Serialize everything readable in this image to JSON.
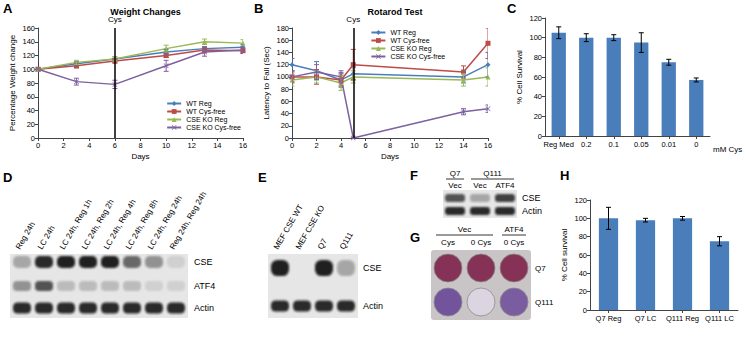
{
  "chart_data": [
    {
      "panel": "A",
      "type": "line",
      "title": "Weight Changes",
      "x_label": "Days",
      "y_label": "Percentage Weight change",
      "x": [
        0,
        3,
        6,
        10,
        13,
        16
      ],
      "xlim": [
        0,
        16
      ],
      "xticks": [
        0,
        2,
        4,
        6,
        8,
        10,
        12,
        14,
        16
      ],
      "ylim": [
        0,
        160
      ],
      "yticks": [
        0,
        20,
        40,
        60,
        80,
        100,
        120,
        140,
        160
      ],
      "grid": false,
      "legend": "lower right",
      "annotations": [
        {
          "x": 6,
          "text": "Cys"
        }
      ],
      "series": [
        {
          "name": "WT Reg",
          "color": "#4a7ebb",
          "marker": "diamond",
          "values": [
            100,
            108,
            115,
            125,
            130,
            132
          ],
          "errors": [
            2,
            3,
            3,
            4,
            3,
            4
          ]
        },
        {
          "name": "WT Cys-free",
          "color": "#be4b48",
          "marker": "square",
          "values": [
            100,
            105,
            112,
            120,
            128,
            127
          ],
          "errors": [
            2,
            3,
            3,
            3,
            4,
            4
          ]
        },
        {
          "name": "CSE KO Reg",
          "color": "#98b954",
          "marker": "triangle",
          "values": [
            100,
            110,
            115,
            130,
            140,
            138
          ],
          "errors": [
            2,
            3,
            3,
            5,
            4,
            5
          ]
        },
        {
          "name": "CSE KO Cys-free",
          "color": "#7d60a0",
          "marker": "x",
          "values": [
            100,
            82,
            78,
            105,
            125,
            128
          ],
          "errors": [
            2,
            5,
            6,
            8,
            6,
            5
          ]
        }
      ]
    },
    {
      "panel": "B",
      "type": "line",
      "title": "Rotarod Test",
      "x_label": "Days",
      "y_label": "Latency to Fall (Sec)",
      "x": [
        0,
        2,
        4,
        5,
        14,
        16
      ],
      "xlim": [
        0,
        16
      ],
      "xticks": [
        0,
        2,
        4,
        6,
        8,
        10,
        12,
        14,
        16
      ],
      "ylim": [
        0,
        180
      ],
      "yticks": [
        0,
        20,
        40,
        60,
        80,
        100,
        120,
        140,
        160,
        180
      ],
      "grid": false,
      "legend": "top",
      "annotations": [
        {
          "x": 5,
          "text": "Cys"
        }
      ],
      "series": [
        {
          "name": "WT Reg",
          "color": "#4a7ebb",
          "marker": "diamond",
          "values": [
            120,
            110,
            95,
            105,
            100,
            120
          ],
          "errors": [
            10,
            15,
            12,
            10,
            10,
            20
          ]
        },
        {
          "name": "WT Cys-free",
          "color": "#be4b48",
          "marker": "square",
          "values": [
            100,
            100,
            95,
            120,
            108,
            155
          ],
          "errors": [
            8,
            12,
            10,
            25,
            10,
            25
          ]
        },
        {
          "name": "CSE KO Reg",
          "color": "#98b954",
          "marker": "triangle",
          "values": [
            95,
            100,
            90,
            100,
            95,
            100
          ],
          "errors": [
            10,
            10,
            12,
            10,
            10,
            15
          ]
        },
        {
          "name": "CSE KO Cys-free",
          "color": "#7d60a0",
          "marker": "x",
          "values": [
            100,
            108,
            100,
            0,
            43,
            48
          ],
          "errors": [
            10,
            12,
            10,
            0,
            5,
            6
          ]
        }
      ]
    },
    {
      "panel": "C",
      "type": "bar",
      "x_label": "mM Cys",
      "y_label": "% Cell Survival",
      "categories": [
        "Reg Med",
        "0.2",
        "0.1",
        "0.05",
        "0.01",
        "0"
      ],
      "values": [
        105,
        100,
        100,
        95,
        75,
        57
      ],
      "errors": [
        6,
        4,
        3,
        10,
        3,
        2
      ],
      "color": "#4a7ebb",
      "ylim": [
        0,
        120
      ],
      "yticks": [
        0,
        20,
        40,
        60,
        80,
        100,
        120
      ],
      "grid": false
    },
    {
      "panel": "H",
      "type": "bar",
      "y_label": "% Cell survival",
      "categories": [
        "Q7 Reg",
        "Q7 LC",
        "Q111 Reg",
        "Q111 LC"
      ],
      "values": [
        100,
        98,
        100,
        75
      ],
      "errors": [
        12,
        2,
        2,
        5
      ],
      "color": "#4a7ebb",
      "ylim": [
        0,
        120
      ],
      "yticks": [
        0,
        20,
        40,
        60,
        80,
        100,
        120
      ],
      "grid": false
    }
  ],
  "blots": [
    {
      "panel": "D",
      "lanes": [
        "Reg 24h",
        "LC 24h",
        "LC 24h, Reg 1h",
        "LC 24h, Reg 2h",
        "LC 24h, Reg 4h",
        "LC 24h, Reg 8h",
        "LC 24h, Reg 24h",
        "Reg 24h, Reg 24h"
      ],
      "rows": [
        {
          "name": "CSE",
          "intensity": [
            0.3,
            0.9,
            0.95,
            0.95,
            0.95,
            0.6,
            0.4,
            0.1
          ]
        },
        {
          "name": "ATF4",
          "intensity": [
            0.4,
            0.7,
            0.2,
            0.2,
            0.2,
            0.2,
            0.1,
            0.1
          ]
        },
        {
          "name": "Actin",
          "intensity": [
            0.9,
            0.9,
            0.9,
            0.9,
            0.9,
            0.9,
            0.9,
            0.9
          ]
        }
      ]
    },
    {
      "panel": "E",
      "lanes": [
        "MEF CSE WT",
        "MEF CSE KO",
        "Q7",
        "Q111"
      ],
      "rows": [
        {
          "name": "CSE",
          "intensity": [
            0.95,
            0,
            0.95,
            0.3
          ]
        },
        {
          "name": "Actin",
          "intensity": [
            0.9,
            0.9,
            0.9,
            0.9
          ]
        }
      ]
    },
    {
      "panel": "F",
      "headers": [
        {
          "text": "Q7",
          "span": 1
        },
        {
          "text": "Q111",
          "span": 2
        }
      ],
      "lanes": [
        "Vec",
        "Vec",
        "ATF4"
      ],
      "rows": [
        {
          "name": "CSE",
          "intensity": [
            0.7,
            0.3,
            0.8
          ]
        },
        {
          "name": "Actin",
          "intensity": [
            0.9,
            0.9,
            0.9
          ]
        }
      ]
    }
  ],
  "plate": {
    "panel": "G",
    "headers": [
      {
        "text": "Vec",
        "span": 2
      },
      {
        "text": "ATF4",
        "span": 1
      }
    ],
    "columns": [
      "Cys",
      "0 Cys",
      "0 Cys"
    ],
    "rows": [
      {
        "name": "Q7",
        "color": "#7a1e45",
        "intensity": [
          0.9,
          0.9,
          0.9
        ]
      },
      {
        "name": "Q111",
        "color": "#5b3a8c",
        "intensity": [
          0.85,
          0.12,
          0.8
        ]
      }
    ]
  }
}
